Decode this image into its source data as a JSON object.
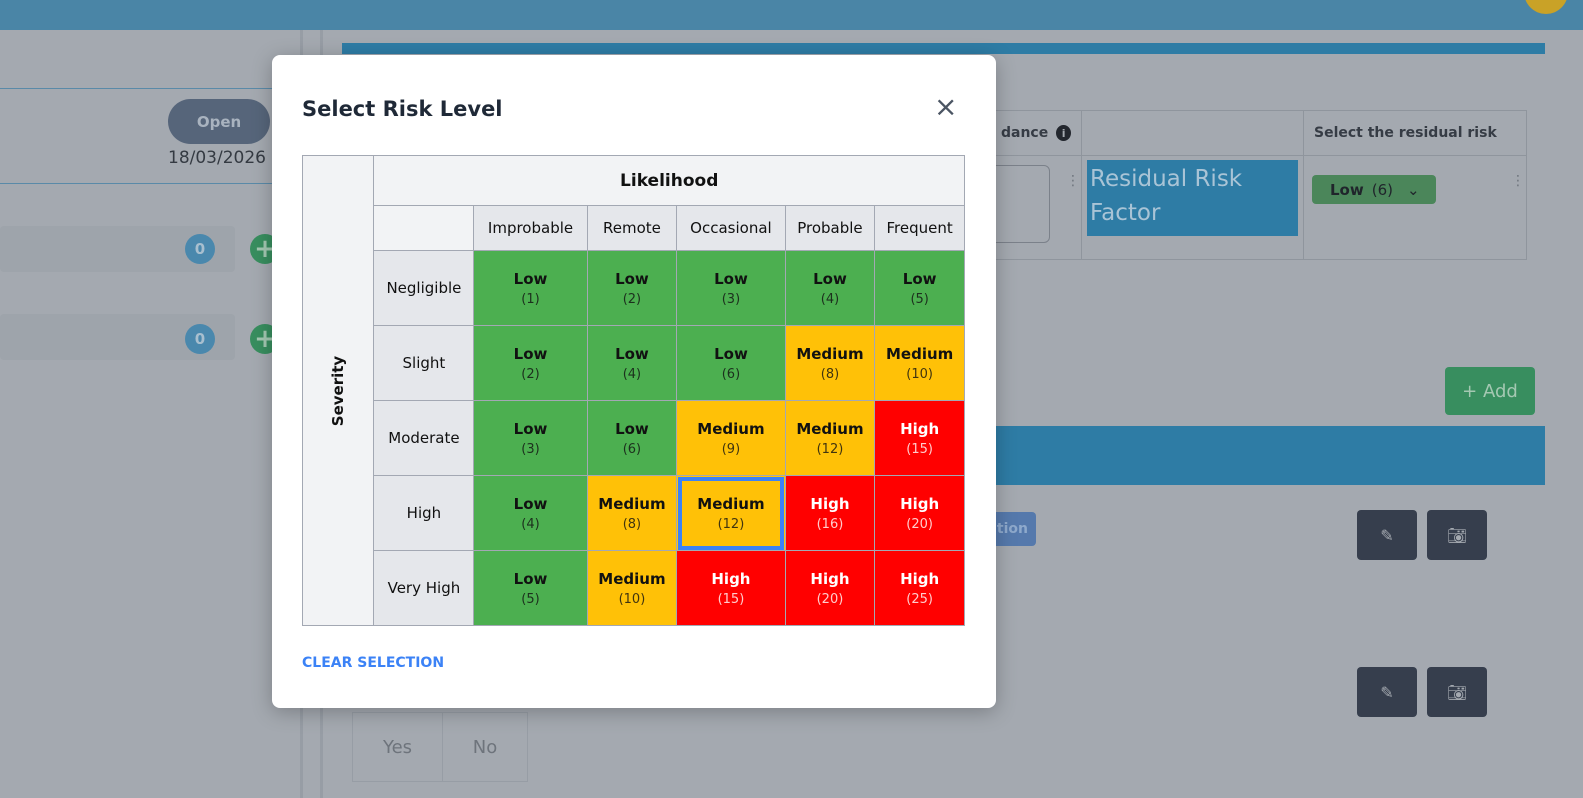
{
  "background": {
    "status_pill": "Open",
    "date": "18/03/2026",
    "counts": [
      "0",
      "0"
    ],
    "table_headers": [
      "dance",
      "",
      "Select the residual risk"
    ],
    "residual_risk_factor": "Residual Risk Factor",
    "residual_selected": {
      "label": "Low",
      "score": "(6)"
    },
    "add_button": "+ Add",
    "chip_text": "tion",
    "yes": "Yes",
    "no": "No"
  },
  "modal": {
    "title": "Select Risk Level",
    "close": "×",
    "severity_label": "Severity",
    "likelihood_label": "Likelihood",
    "likelihood": [
      "Improbable",
      "Remote",
      "Occasional",
      "Probable",
      "Frequent"
    ],
    "severity": [
      "Negligible",
      "Slight",
      "Moderate",
      "High",
      "Very High"
    ],
    "colors": {
      "Low": "#4caf50",
      "Medium": "#ffc107",
      "High": "#ff0000"
    },
    "matrix": [
      [
        [
          "Low",
          "(1)"
        ],
        [
          "Low",
          "(2)"
        ],
        [
          "Low",
          "(3)"
        ],
        [
          "Low",
          "(4)"
        ],
        [
          "Low",
          "(5)"
        ]
      ],
      [
        [
          "Low",
          "(2)"
        ],
        [
          "Low",
          "(4)"
        ],
        [
          "Low",
          "(6)"
        ],
        [
          "Medium",
          "(8)"
        ],
        [
          "Medium",
          "(10)"
        ]
      ],
      [
        [
          "Low",
          "(3)"
        ],
        [
          "Low",
          "(6)"
        ],
        [
          "Medium",
          "(9)"
        ],
        [
          "Medium",
          "(12)"
        ],
        [
          "High",
          "(15)"
        ]
      ],
      [
        [
          "Low",
          "(4)"
        ],
        [
          "Medium",
          "(8)"
        ],
        [
          "Medium",
          "(12)"
        ],
        [
          "High",
          "(16)"
        ],
        [
          "High",
          "(20)"
        ]
      ],
      [
        [
          "Low",
          "(5)"
        ],
        [
          "Medium",
          "(10)"
        ],
        [
          "High",
          "(15)"
        ],
        [
          "High",
          "(20)"
        ],
        [
          "High",
          "(25)"
        ]
      ]
    ],
    "selected": {
      "severity": "High",
      "likelihood": "Occasional"
    },
    "clear_selection": "CLEAR SELECTION"
  }
}
